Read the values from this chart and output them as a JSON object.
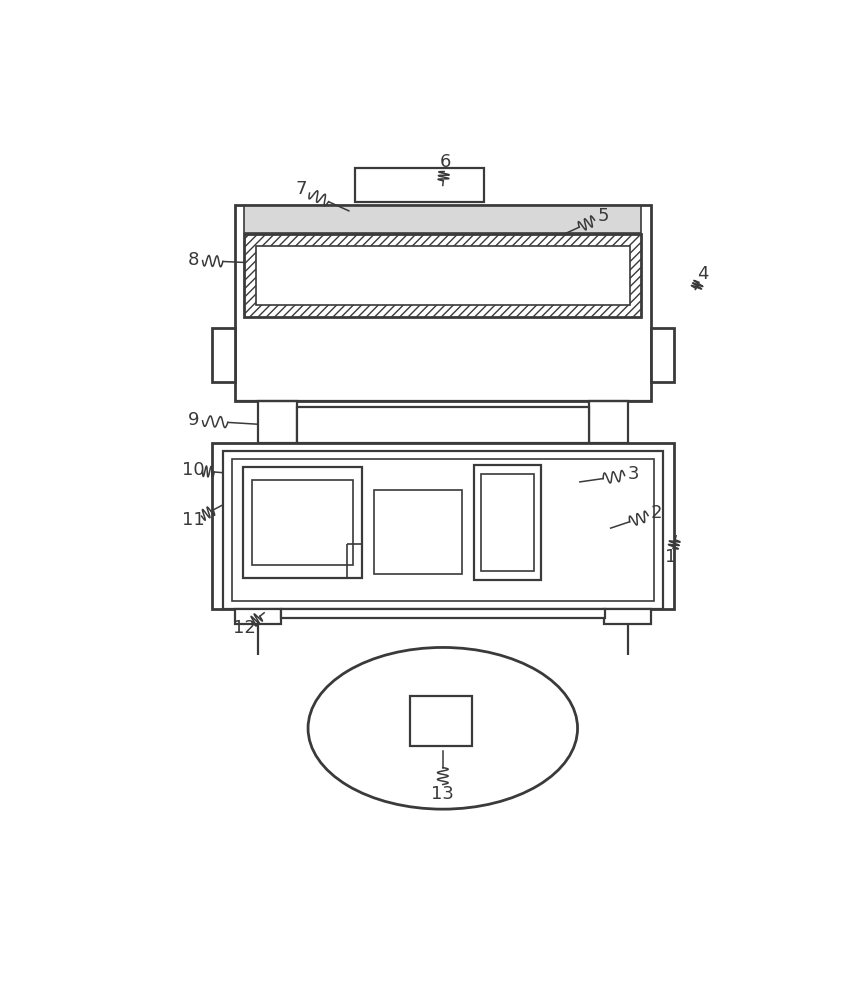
{
  "bg_color": "#ffffff",
  "line_color": "#3a3a3a",
  "label_color": "#3a3a3a",
  "lw_thin": 1.2,
  "lw_med": 1.6,
  "lw_thick": 2.0,
  "fig_width": 8.64,
  "fig_height": 10.0,
  "dpi": 100
}
